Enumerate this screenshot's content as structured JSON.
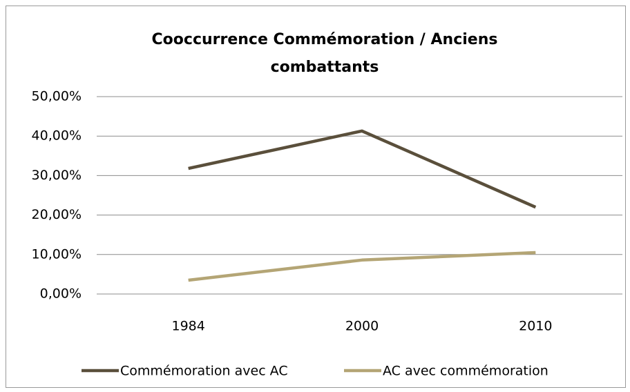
{
  "chart_data": {
    "type": "line",
    "title": "Cooccurrence Commémoration / Anciens combattants",
    "categories": [
      "1984",
      "2000",
      "2010"
    ],
    "series": [
      {
        "name": "Commémoration avec AC",
        "color": "#5a4f3b",
        "values": [
          31.8,
          41.3,
          22.0
        ]
      },
      {
        "name": "AC avec commémoration",
        "color": "#b4a575",
        "values": [
          3.5,
          8.6,
          10.5
        ]
      }
    ],
    "ylim": [
      0,
      50
    ],
    "yticks": [
      {
        "value": 0,
        "label": "0,00%"
      },
      {
        "value": 10,
        "label": "10,00%"
      },
      {
        "value": 20,
        "label": "20,00%"
      },
      {
        "value": 30,
        "label": "30,00%"
      },
      {
        "value": 40,
        "label": "40,00%"
      },
      {
        "value": 50,
        "label": "50,00%"
      }
    ],
    "grid": true,
    "legend": "bottom"
  }
}
